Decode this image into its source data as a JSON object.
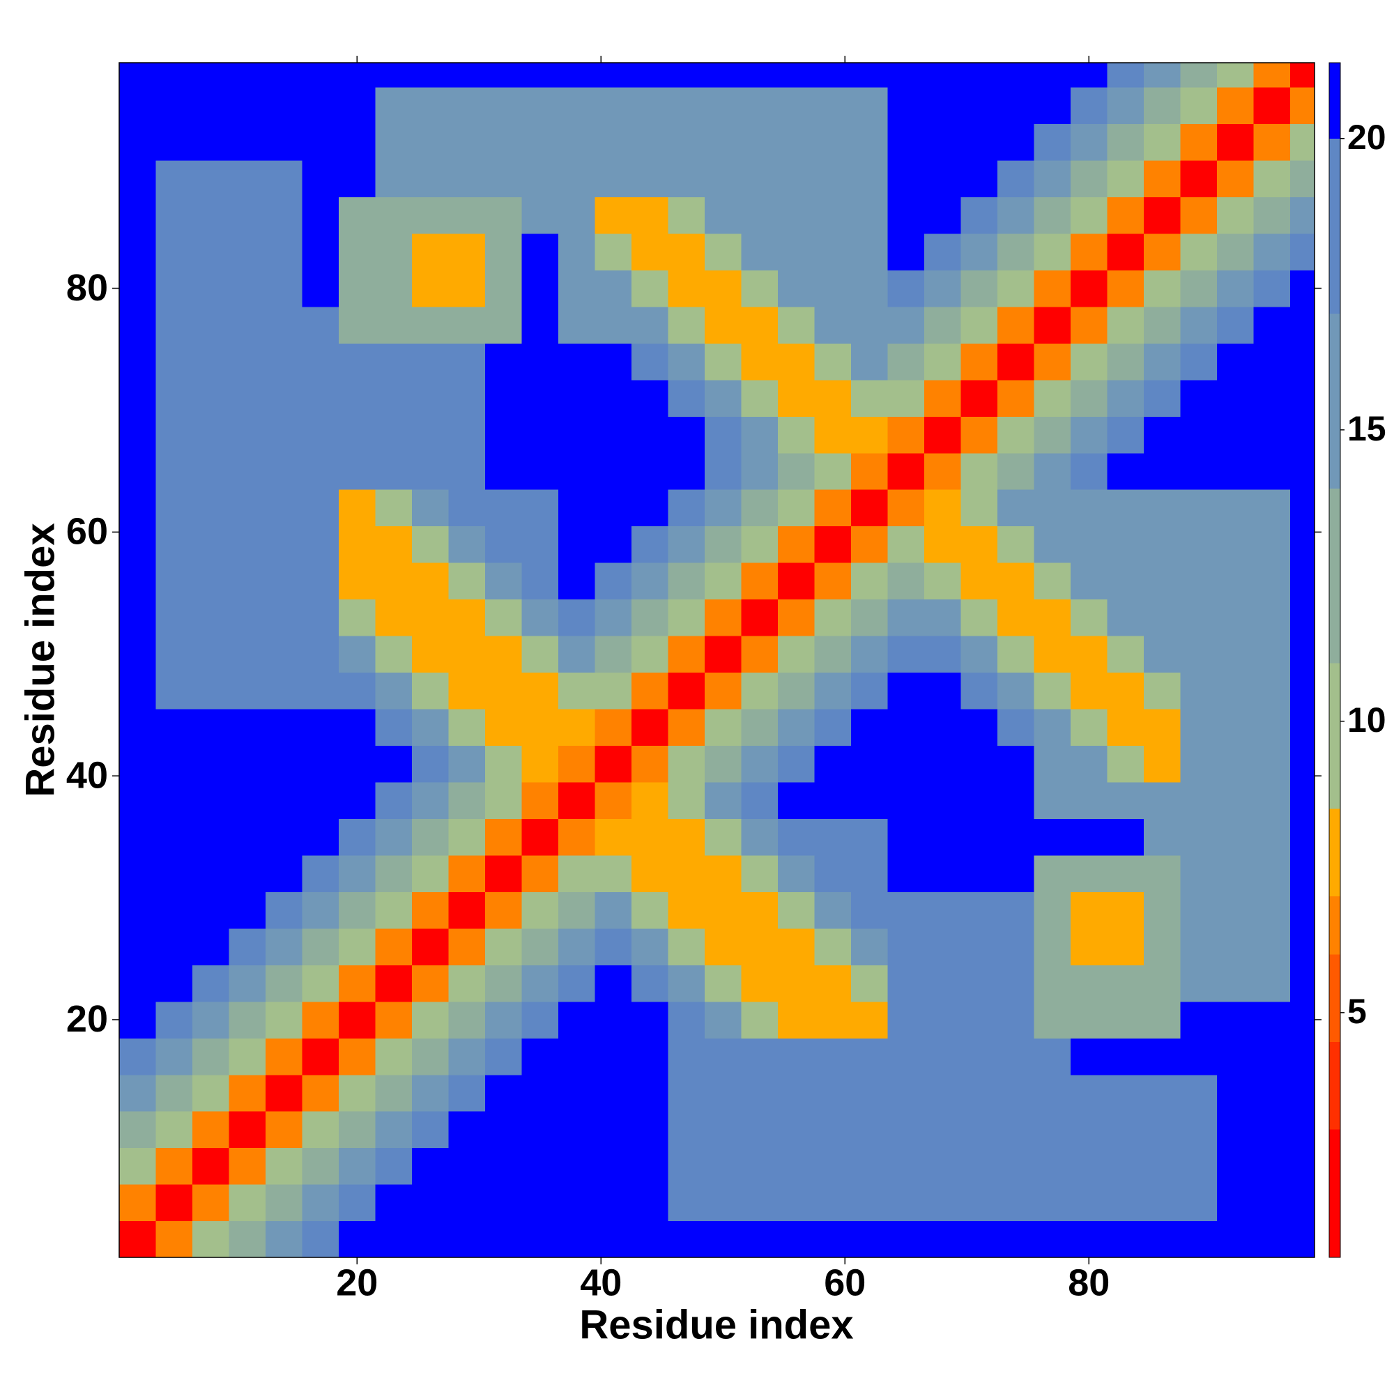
{
  "chart_data": {
    "type": "heatmap",
    "xlabel": "Residue index",
    "ylabel": "Residue index",
    "x": [
      2,
      5,
      8,
      11,
      14,
      17,
      20,
      23,
      26,
      29,
      32,
      35,
      38,
      41,
      44,
      47,
      50,
      53,
      56,
      59,
      62,
      65,
      68,
      71,
      74,
      77,
      80,
      83,
      86,
      89,
      92,
      95,
      98
    ],
    "y": [
      2,
      5,
      8,
      11,
      14,
      17,
      20,
      23,
      26,
      29,
      32,
      35,
      38,
      41,
      44,
      47,
      50,
      53,
      56,
      59,
      62,
      65,
      68,
      71,
      74,
      77,
      80,
      83,
      86,
      89,
      92,
      95,
      98
    ],
    "xlim": [
      0.5,
      98.5
    ],
    "ylim": [
      0.5,
      98.5
    ],
    "xticks": [
      20,
      40,
      60,
      80
    ],
    "yticks": [
      20,
      40,
      60,
      80
    ],
    "colorbar": {
      "lim": [
        0.8,
        21.3
      ],
      "ticks": [
        5,
        10,
        15,
        20
      ],
      "levels": [
        0.8,
        3,
        4.5,
        6,
        7,
        8.5,
        11,
        14,
        17,
        20,
        21.3
      ],
      "colors": [
        "#ff0000",
        "#ff3000",
        "#ff5a00",
        "#ff8200",
        "#ffaa00",
        "#a3bf8c",
        "#8fae9c",
        "#7198b8",
        "#5f87c4",
        "#0000ff"
      ]
    },
    "z": [
      [
        1,
        6,
        10,
        13,
        16,
        18,
        20,
        21,
        21,
        21,
        21,
        21,
        21,
        21,
        21,
        21,
        21,
        21,
        21,
        21,
        21,
        21,
        21,
        21,
        21,
        21,
        21,
        21,
        21,
        21,
        21,
        21,
        21
      ],
      [
        6,
        1,
        6,
        10,
        13,
        16,
        18,
        20,
        21,
        21,
        21,
        21,
        21,
        21,
        21,
        19,
        19,
        19,
        19,
        19,
        19,
        19,
        19,
        19,
        19,
        19,
        19,
        19,
        19,
        19,
        21,
        21,
        21
      ],
      [
        10,
        6,
        1,
        6,
        10,
        13,
        16,
        18,
        20,
        21,
        21,
        21,
        21,
        21,
        21,
        19,
        19,
        19,
        19,
        19,
        19,
        19,
        19,
        19,
        19,
        19,
        19,
        19,
        19,
        19,
        21,
        21,
        21
      ],
      [
        13,
        10,
        6,
        1,
        6,
        10,
        13,
        16,
        18,
        20,
        21,
        21,
        21,
        21,
        21,
        19,
        19,
        19,
        19,
        19,
        19,
        19,
        19,
        19,
        19,
        19,
        19,
        19,
        19,
        19,
        21,
        21,
        21
      ],
      [
        16,
        13,
        10,
        6,
        1,
        6,
        10,
        13,
        16,
        18,
        20,
        21,
        21,
        21,
        21,
        19,
        19,
        19,
        19,
        19,
        17,
        17,
        17,
        17,
        17,
        17,
        19,
        19,
        19,
        19,
        21,
        21,
        21
      ],
      [
        18,
        16,
        13,
        10,
        6,
        1,
        6,
        10,
        13,
        16,
        18,
        20,
        21,
        21,
        21,
        17,
        17,
        17,
        17,
        17,
        17,
        17,
        17,
        17,
        17,
        17,
        21,
        21,
        21,
        21,
        21,
        21,
        21
      ],
      [
        20,
        18,
        16,
        13,
        10,
        6,
        1,
        6,
        10,
        13,
        16,
        18,
        20,
        21,
        21,
        17,
        14,
        10,
        7,
        7,
        7,
        17,
        17,
        17,
        17,
        13,
        13,
        13,
        13,
        21,
        21,
        21,
        21
      ],
      [
        21,
        20,
        18,
        16,
        13,
        10,
        6,
        1,
        6,
        10,
        13,
        16,
        18,
        20,
        17,
        14,
        10,
        7,
        7,
        7,
        10,
        17,
        17,
        17,
        17,
        13,
        13,
        13,
        13,
        16,
        16,
        16,
        21
      ],
      [
        21,
        21,
        20,
        18,
        16,
        13,
        10,
        6,
        1,
        6,
        10,
        13,
        16,
        17,
        14,
        10,
        7,
        7,
        7,
        10,
        14,
        17,
        17,
        17,
        17,
        13,
        8,
        8,
        13,
        16,
        16,
        16,
        21
      ],
      [
        21,
        21,
        21,
        20,
        18,
        16,
        13,
        10,
        6,
        1,
        6,
        10,
        13,
        14,
        10,
        7,
        7,
        7,
        10,
        14,
        17,
        17,
        17,
        17,
        17,
        13,
        8,
        8,
        13,
        16,
        16,
        16,
        21
      ],
      [
        21,
        21,
        21,
        21,
        20,
        18,
        16,
        13,
        10,
        6,
        1,
        6,
        10,
        10,
        7,
        7,
        7,
        10,
        14,
        17,
        17,
        21,
        21,
        21,
        21,
        13,
        13,
        13,
        13,
        16,
        16,
        16,
        21
      ],
      [
        21,
        21,
        21,
        21,
        21,
        20,
        18,
        16,
        13,
        10,
        6,
        1,
        6,
        7,
        7,
        7,
        10,
        14,
        17,
        17,
        17,
        21,
        21,
        21,
        21,
        21,
        21,
        21,
        16,
        16,
        16,
        16,
        21
      ],
      [
        21,
        21,
        21,
        21,
        21,
        21,
        20,
        18,
        16,
        13,
        10,
        6,
        1,
        6,
        7,
        10,
        14,
        17,
        20,
        21,
        21,
        21,
        21,
        21,
        21,
        16,
        16,
        16,
        16,
        16,
        16,
        16,
        21
      ],
      [
        21,
        21,
        21,
        21,
        21,
        21,
        21,
        20,
        17,
        14,
        10,
        7,
        6,
        1,
        6,
        10,
        13,
        16,
        18,
        20,
        21,
        21,
        21,
        21,
        21,
        16,
        14,
        10,
        7,
        16,
        16,
        16,
        21
      ],
      [
        21,
        21,
        21,
        21,
        21,
        21,
        21,
        17,
        14,
        10,
        7,
        7,
        7,
        6,
        1,
        6,
        10,
        13,
        16,
        18,
        20,
        21,
        21,
        21,
        17,
        14,
        10,
        7,
        7,
        16,
        16,
        16,
        21
      ],
      [
        21,
        19,
        19,
        19,
        19,
        17,
        17,
        14,
        10,
        7,
        7,
        7,
        10,
        10,
        6,
        1,
        6,
        10,
        13,
        16,
        18,
        20,
        21,
        17,
        14,
        10,
        7,
        7,
        10,
        16,
        16,
        16,
        21
      ],
      [
        21,
        19,
        19,
        19,
        19,
        17,
        14,
        10,
        7,
        7,
        7,
        10,
        14,
        13,
        10,
        6,
        1,
        6,
        10,
        13,
        16,
        18,
        17,
        14,
        10,
        7,
        7,
        10,
        14,
        16,
        16,
        16,
        21
      ],
      [
        21,
        19,
        19,
        19,
        19,
        17,
        10,
        7,
        7,
        7,
        10,
        14,
        17,
        16,
        13,
        10,
        6,
        1,
        6,
        10,
        13,
        16,
        14,
        10,
        7,
        7,
        10,
        14,
        16,
        16,
        16,
        16,
        21
      ],
      [
        21,
        19,
        19,
        19,
        19,
        17,
        7,
        7,
        7,
        10,
        14,
        17,
        20,
        18,
        16,
        13,
        10,
        6,
        1,
        6,
        10,
        13,
        10,
        7,
        7,
        10,
        14,
        16,
        16,
        16,
        16,
        16,
        21
      ],
      [
        21,
        19,
        19,
        19,
        19,
        17,
        7,
        7,
        10,
        14,
        17,
        17,
        21,
        20,
        18,
        16,
        13,
        10,
        6,
        1,
        6,
        10,
        7,
        7,
        10,
        14,
        16,
        16,
        16,
        16,
        16,
        16,
        21
      ],
      [
        21,
        19,
        19,
        19,
        17,
        17,
        7,
        10,
        14,
        17,
        17,
        17,
        21,
        21,
        20,
        18,
        16,
        13,
        10,
        6,
        1,
        6,
        7,
        10,
        14,
        16,
        16,
        16,
        16,
        16,
        16,
        16,
        21
      ],
      [
        21,
        19,
        19,
        19,
        17,
        17,
        17,
        17,
        17,
        17,
        21,
        21,
        21,
        21,
        21,
        20,
        18,
        16,
        13,
        10,
        6,
        1,
        6,
        10,
        13,
        16,
        18,
        20,
        21,
        21,
        21,
        21,
        21
      ],
      [
        21,
        19,
        19,
        19,
        17,
        17,
        17,
        17,
        17,
        17,
        21,
        21,
        21,
        21,
        21,
        21,
        17,
        14,
        10,
        7,
        7,
        6,
        1,
        6,
        10,
        13,
        16,
        18,
        20,
        21,
        21,
        21,
        21
      ],
      [
        21,
        19,
        19,
        19,
        17,
        17,
        17,
        17,
        17,
        17,
        21,
        21,
        21,
        21,
        21,
        17,
        14,
        10,
        7,
        7,
        10,
        10,
        6,
        1,
        6,
        10,
        13,
        16,
        18,
        20,
        21,
        21,
        21
      ],
      [
        21,
        19,
        19,
        19,
        17,
        17,
        17,
        17,
        17,
        17,
        21,
        21,
        21,
        21,
        17,
        14,
        10,
        7,
        7,
        10,
        14,
        13,
        10,
        6,
        1,
        6,
        10,
        13,
        16,
        18,
        20,
        21,
        21
      ],
      [
        21,
        19,
        19,
        19,
        17,
        17,
        13,
        13,
        13,
        13,
        13,
        21,
        16,
        16,
        14,
        10,
        7,
        7,
        10,
        14,
        16,
        16,
        13,
        10,
        6,
        1,
        6,
        10,
        13,
        16,
        18,
        20,
        21
      ],
      [
        21,
        19,
        19,
        19,
        19,
        21,
        13,
        13,
        8,
        8,
        13,
        21,
        16,
        14,
        10,
        7,
        7,
        10,
        14,
        16,
        16,
        18,
        16,
        13,
        10,
        6,
        1,
        6,
        10,
        13,
        16,
        18,
        20
      ],
      [
        21,
        19,
        19,
        19,
        19,
        21,
        13,
        13,
        8,
        8,
        13,
        21,
        16,
        10,
        7,
        7,
        10,
        14,
        16,
        16,
        16,
        20,
        18,
        16,
        13,
        10,
        6,
        1,
        6,
        10,
        13,
        16,
        18
      ],
      [
        21,
        19,
        19,
        19,
        19,
        21,
        13,
        13,
        13,
        13,
        13,
        16,
        16,
        7,
        7,
        10,
        14,
        16,
        16,
        16,
        16,
        21,
        20,
        18,
        16,
        13,
        10,
        6,
        1,
        6,
        10,
        13,
        16
      ],
      [
        21,
        19,
        19,
        19,
        19,
        21,
        21,
        16,
        16,
        16,
        16,
        16,
        16,
        16,
        16,
        16,
        16,
        16,
        16,
        16,
        16,
        21,
        21,
        20,
        18,
        16,
        13,
        10,
        6,
        1,
        6,
        10,
        13
      ],
      [
        21,
        21,
        21,
        21,
        21,
        21,
        21,
        16,
        16,
        16,
        16,
        16,
        16,
        16,
        16,
        16,
        16,
        16,
        16,
        16,
        16,
        21,
        21,
        21,
        20,
        18,
        16,
        13,
        10,
        6,
        1,
        6,
        10
      ],
      [
        21,
        21,
        21,
        21,
        21,
        21,
        21,
        16,
        16,
        16,
        16,
        16,
        16,
        16,
        16,
        16,
        16,
        16,
        16,
        16,
        16,
        21,
        21,
        21,
        21,
        20,
        18,
        16,
        13,
        10,
        6,
        1,
        6
      ],
      [
        21,
        21,
        21,
        21,
        21,
        21,
        21,
        21,
        21,
        21,
        21,
        21,
        21,
        21,
        21,
        21,
        21,
        21,
        21,
        21,
        21,
        21,
        21,
        21,
        21,
        21,
        20,
        18,
        16,
        13,
        10,
        6,
        1
      ]
    ]
  }
}
